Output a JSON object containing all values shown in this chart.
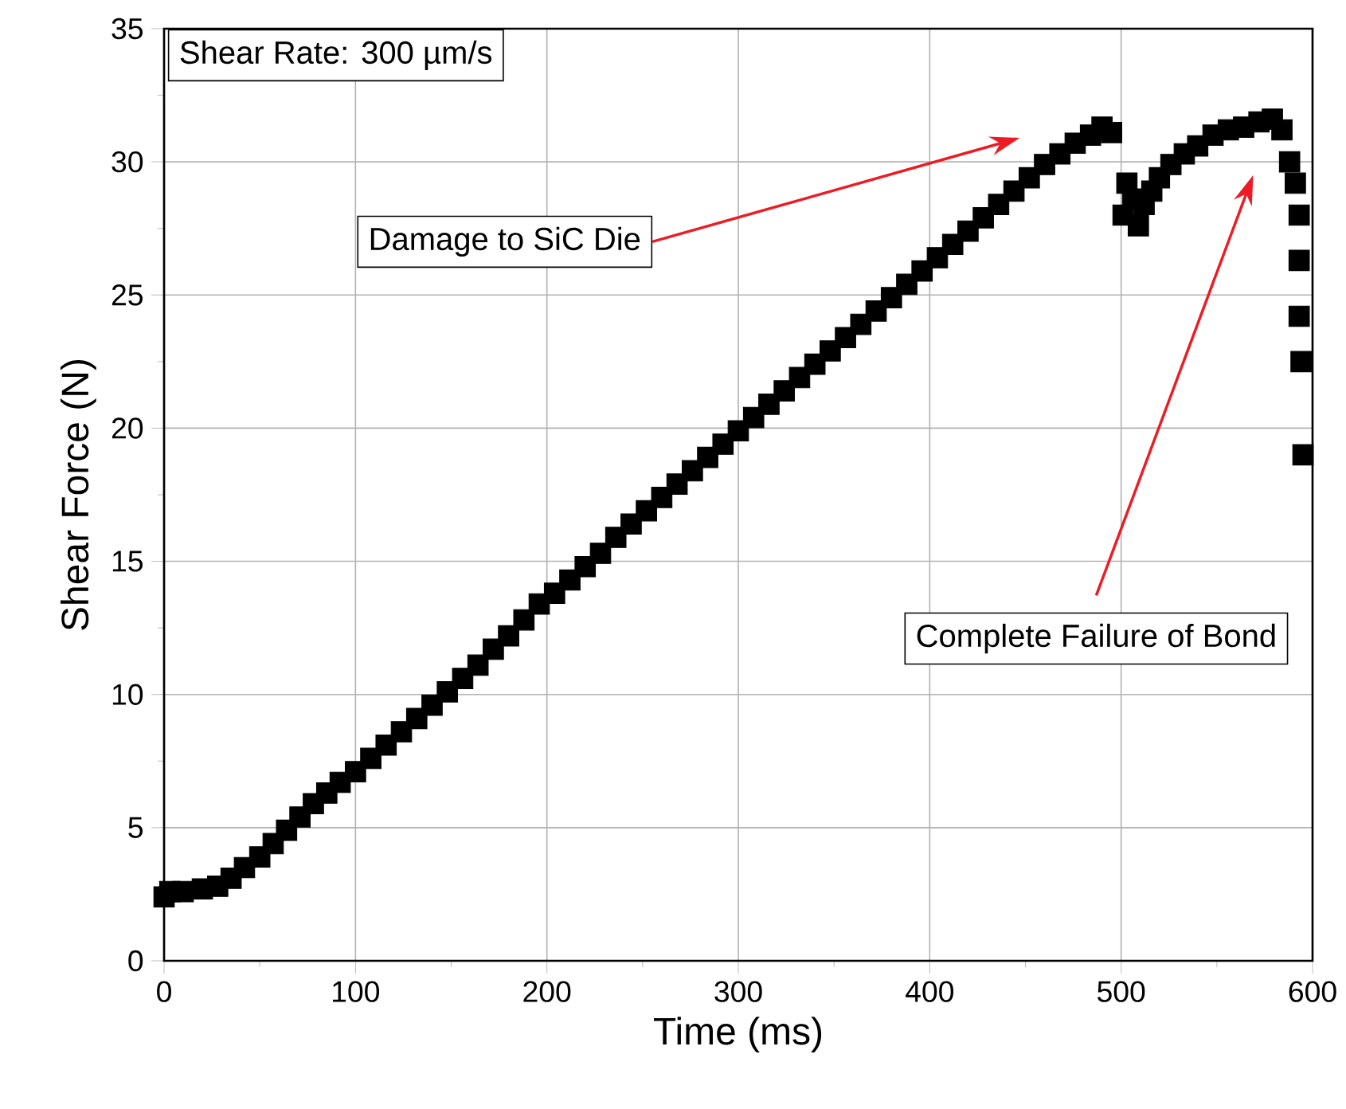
{
  "chart_data": {
    "type": "scatter",
    "xlabel": "Time (ms)",
    "ylabel": "Shear Force (N)",
    "xlim": [
      0,
      600
    ],
    "ylim": [
      0,
      35
    ],
    "xticks": [
      0,
      100,
      200,
      300,
      400,
      500,
      600
    ],
    "yticks": [
      0,
      5,
      10,
      15,
      20,
      25,
      30,
      35
    ],
    "grid": true,
    "marker": "square",
    "color": "#000000",
    "x": [
      0,
      3,
      10,
      20,
      28,
      35,
      42,
      50,
      57,
      64,
      71,
      78,
      85,
      92,
      100,
      108,
      116,
      124,
      132,
      140,
      148,
      156,
      164,
      172,
      180,
      188,
      196,
      204,
      212,
      220,
      228,
      236,
      244,
      252,
      260,
      268,
      276,
      284,
      292,
      300,
      308,
      316,
      324,
      332,
      340,
      348,
      356,
      364,
      372,
      380,
      388,
      396,
      404,
      412,
      420,
      428,
      436,
      444,
      452,
      460,
      468,
      476,
      484,
      490,
      495,
      501,
      503,
      506,
      509,
      512,
      516,
      520,
      526,
      533,
      540,
      548,
      556,
      564,
      572,
      579,
      584,
      588,
      591,
      593,
      593,
      593,
      594,
      595
    ],
    "values": [
      2.4,
      2.6,
      2.6,
      2.7,
      2.8,
      3.1,
      3.5,
      3.9,
      4.4,
      4.9,
      5.4,
      5.9,
      6.3,
      6.7,
      7.1,
      7.6,
      8.1,
      8.6,
      9.1,
      9.6,
      10.1,
      10.6,
      11.1,
      11.7,
      12.2,
      12.8,
      13.4,
      13.8,
      14.3,
      14.8,
      15.3,
      15.9,
      16.4,
      16.9,
      17.4,
      17.9,
      18.4,
      18.9,
      19.4,
      19.9,
      20.4,
      20.9,
      21.4,
      21.9,
      22.4,
      22.9,
      23.4,
      23.9,
      24.4,
      24.9,
      25.4,
      25.9,
      26.4,
      26.9,
      27.4,
      27.9,
      28.4,
      28.9,
      29.4,
      29.9,
      30.3,
      30.7,
      31.0,
      31.3,
      31.1,
      28.0,
      29.2,
      28.6,
      27.6,
      28.4,
      28.9,
      29.4,
      29.9,
      30.3,
      30.6,
      31.0,
      31.2,
      31.3,
      31.5,
      31.6,
      31.2,
      30.0,
      29.2,
      28.0,
      26.3,
      24.2,
      22.5,
      19.0
    ],
    "annotations": [
      "Shear Rate: 300 µm/s",
      "Damage to SiC Die",
      "Complete Failure of Bond"
    ]
  }
}
